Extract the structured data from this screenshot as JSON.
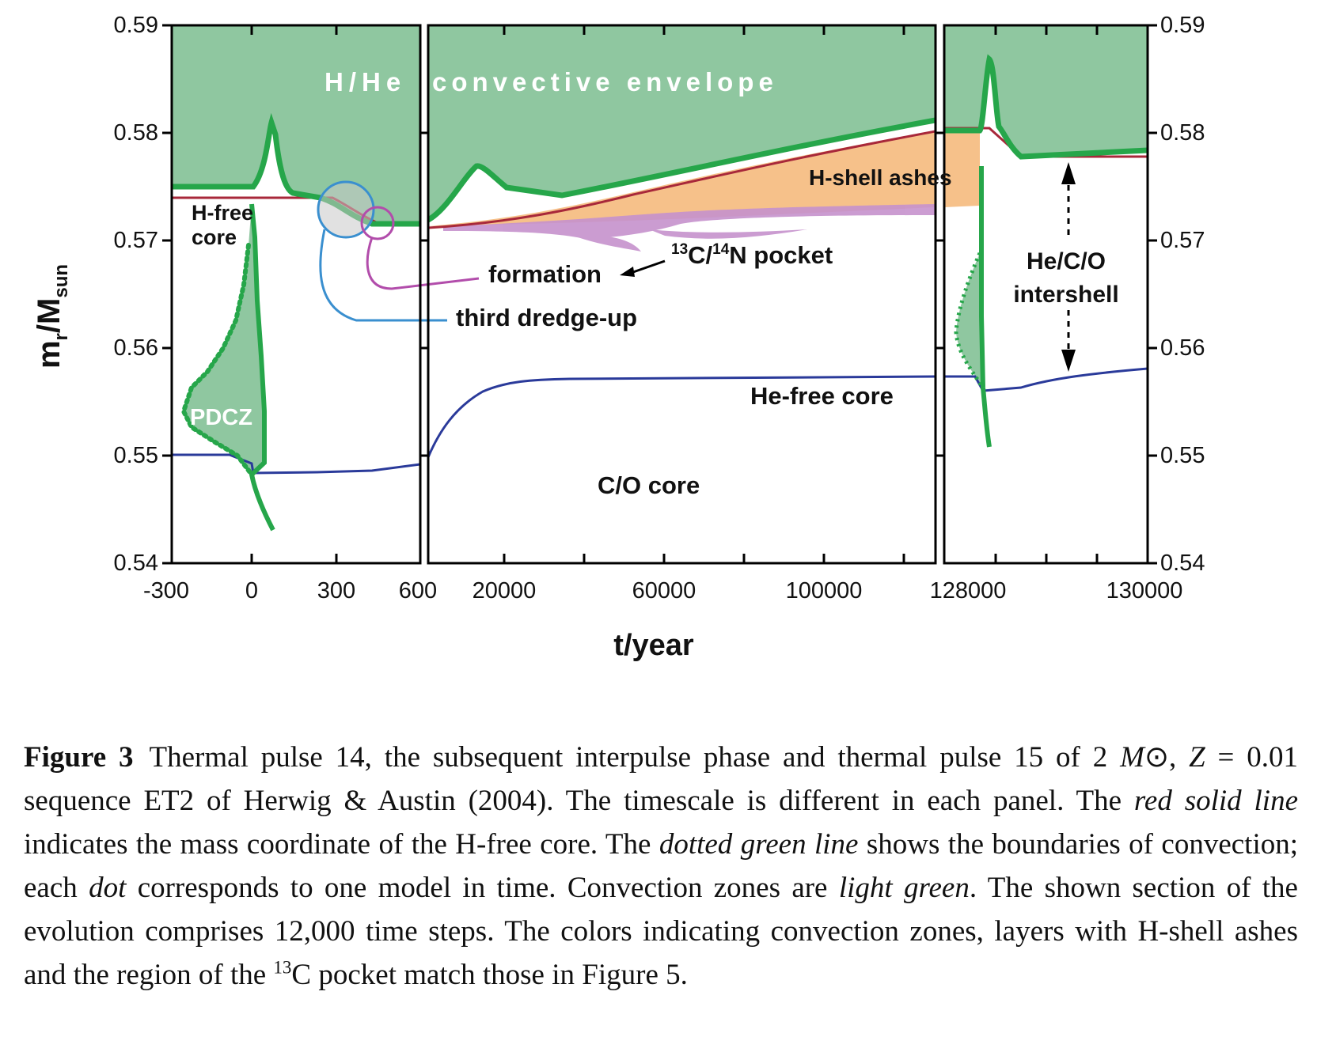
{
  "chart_data": {
    "type": "line",
    "ylabel_main": "m",
    "ylabel_sub1": "r",
    "ylabel_mid": "/M",
    "ylabel_sub2": "sun",
    "xlabel": "t/year",
    "ylim": [
      0.54,
      0.59
    ],
    "yticks": [
      "0.59",
      "0.58",
      "0.57",
      "0.56",
      "0.55",
      "0.54"
    ],
    "panels": [
      {
        "xlim": [
          -300,
          600
        ],
        "xticks": [
          "-300",
          "0",
          "300",
          "600"
        ]
      },
      {
        "xlim": [
          600,
          128000
        ],
        "xticks": [
          "20000",
          "60000",
          "100000",
          "128000"
        ]
      },
      {
        "xlim": [
          128000,
          130000
        ],
        "xticks": [
          "130000"
        ]
      }
    ],
    "series_desc": [
      {
        "name": "H-free core",
        "color": "#a8283a"
      },
      {
        "name": "He-free core",
        "color": "#2a3a9a"
      },
      {
        "name": "convection boundaries",
        "color": "#26a64a"
      }
    ],
    "annotations": {
      "envelope_left": "H/He",
      "envelope_right": "convective envelope",
      "hfree_1": "H-free",
      "hfree_2": "core",
      "pdcz": "PDCZ",
      "ashes": "H-shell ashes",
      "pocket_sup1": "13",
      "pocket_c": "C/",
      "pocket_sup2": "14",
      "pocket_n": "N pocket",
      "formation": "formation",
      "dredge": "third dredge-up",
      "hefree": "He-free core",
      "cocore": "C/O core",
      "inter_1": "He/C/O",
      "inter_2": "intershell"
    }
  },
  "caption": {
    "label": "Figure 3",
    "p1": "Thermal pulse 14, the subsequent interpulse phase and thermal pulse 15 of 2 ",
    "msun": "M",
    "sun_symbol": "⊙",
    "p2": ", ",
    "z": "Z",
    "p3": " = 0.01 sequence ET2 of Herwig & Austin (2004). The timescale is different in each panel. The ",
    "red": "red solid line",
    "p4": " indicates the mass coordinate of the H-free core. The ",
    "dotted": "dotted green line",
    "p5": " shows the boundaries of convection; each ",
    "dot": "dot",
    "p6": " corresponds to one model in time. Convection zones are ",
    "lightgreen": "light green",
    "p7": ". The shown section of the evolution comprises 12,000 time steps. The colors indicating convection zones, layers with H-shell ashes and the region of the ",
    "sup13": "13",
    "p8": "C pocket match those in Figure 5."
  }
}
